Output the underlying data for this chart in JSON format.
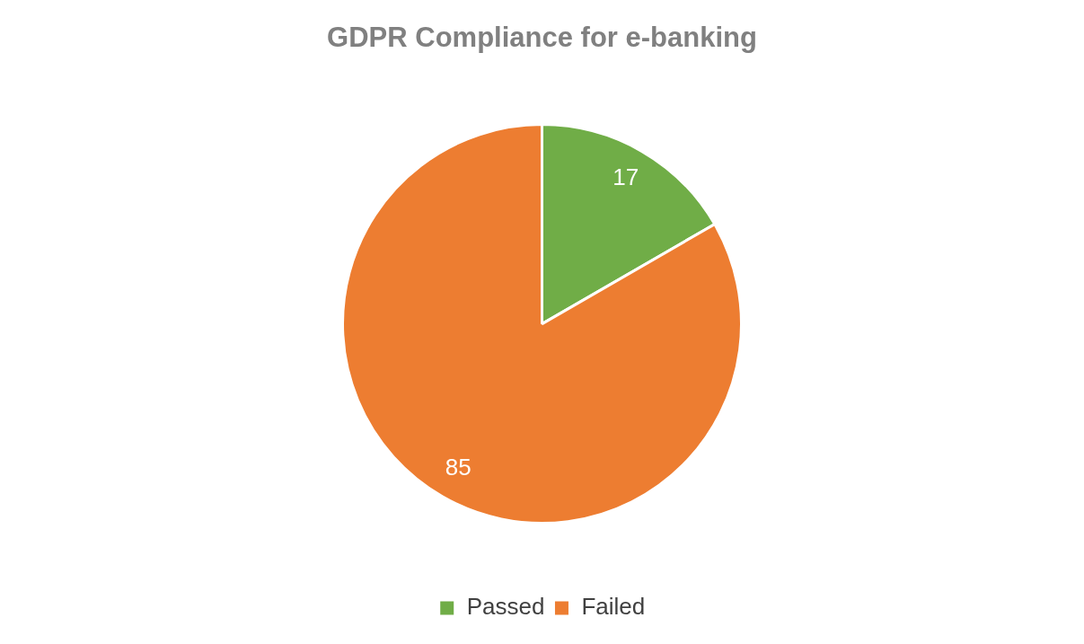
{
  "chart_data": {
    "type": "pie",
    "title": "GDPR Compliance for e-banking",
    "categories": [
      "Passed",
      "Failed"
    ],
    "values": [
      17,
      85
    ],
    "colors": [
      "#70ad47",
      "#ed7d31"
    ],
    "data_labels": true,
    "legend": "bottom"
  }
}
